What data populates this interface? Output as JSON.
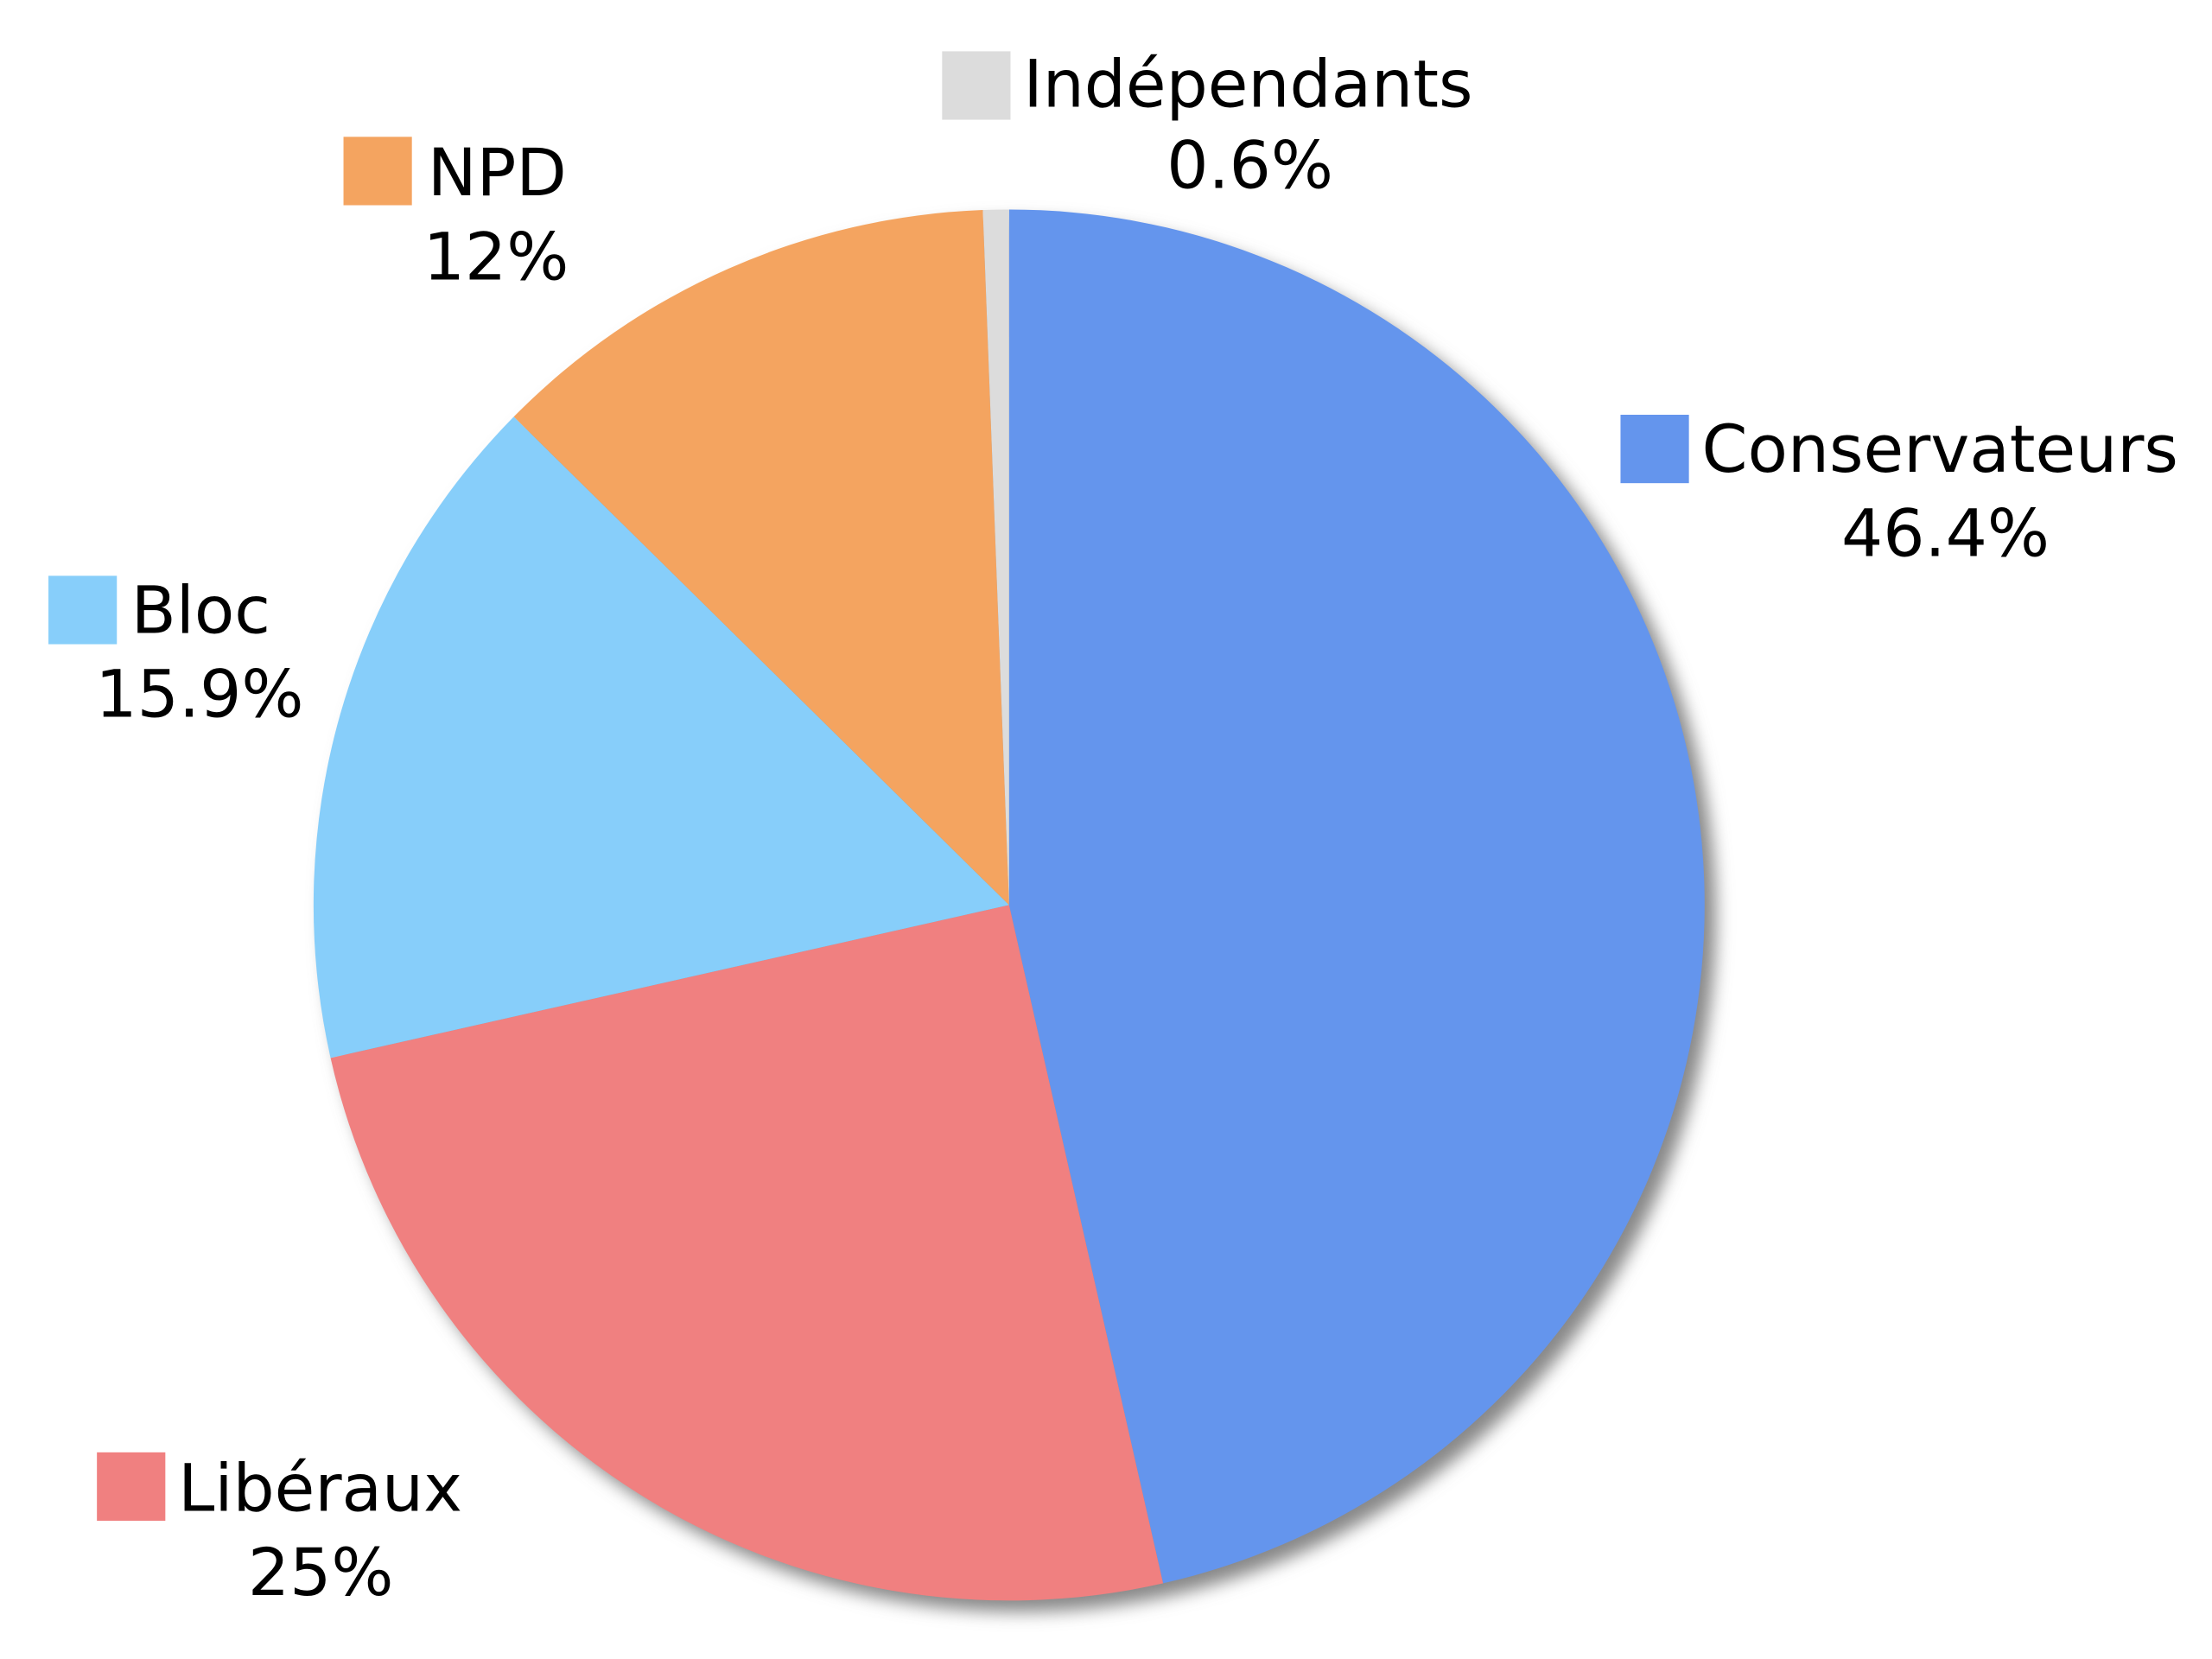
{
  "chart_data": {
    "type": "pie",
    "start_angle": "top",
    "direction": "clockwise",
    "legend": "labels beside slices",
    "slices": [
      {
        "name": "Conservateurs",
        "value": 46.4,
        "label": "46.4%",
        "color": "#6495ED"
      },
      {
        "name": "Libéraux",
        "value": 25,
        "label": "25%",
        "color": "#F08080"
      },
      {
        "name": "Bloc",
        "value": 15.9,
        "label": "15.9%",
        "color": "#87CEFA"
      },
      {
        "name": "NPD",
        "value": 12,
        "label": "12%",
        "color": "#F4A460"
      },
      {
        "name": "Indépendants",
        "value": 0.6,
        "label": "0.6%",
        "color": "#DCDCDC"
      }
    ]
  }
}
